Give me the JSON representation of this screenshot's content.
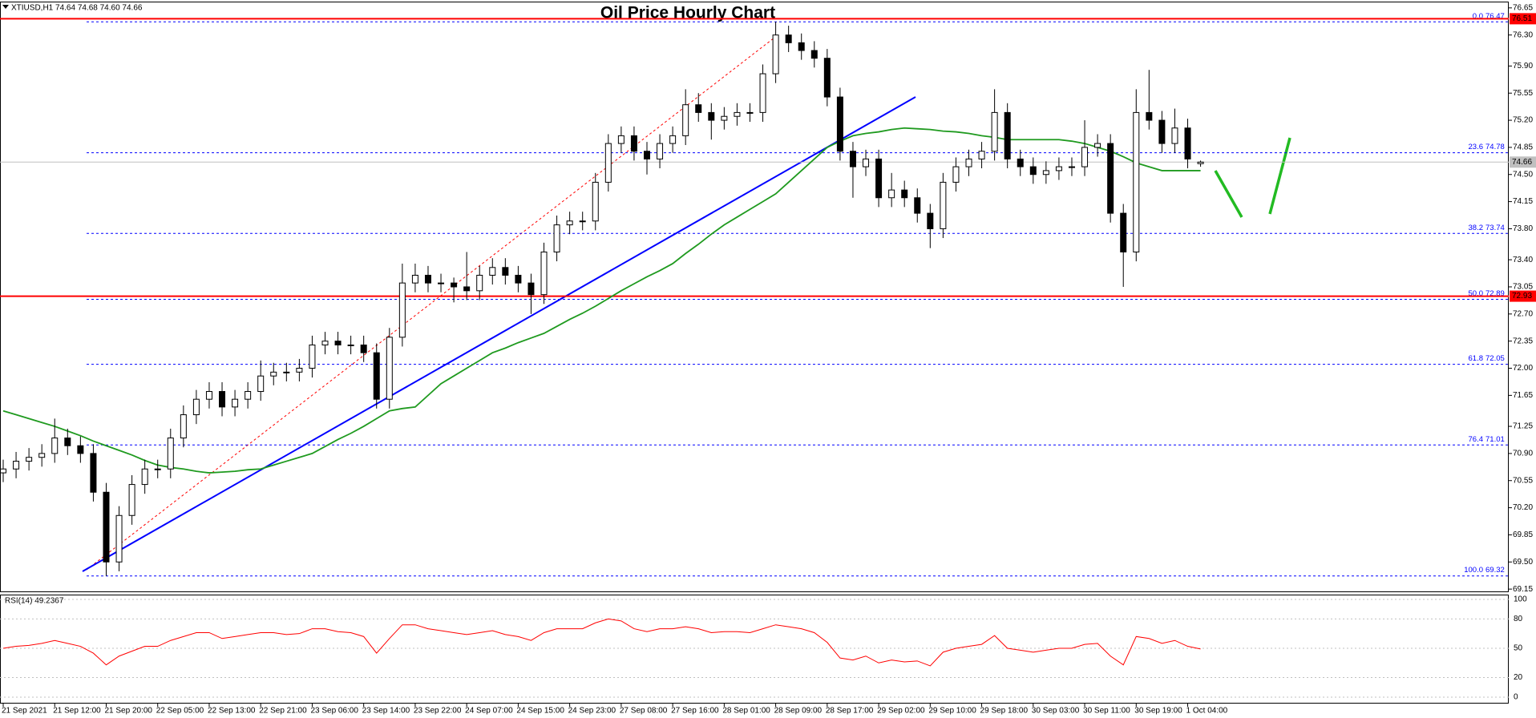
{
  "chart_data": [
    {
      "type": "candlestick",
      "title": "Oil Price Hourly Chart",
      "info": "XTIUSD,H1 74.64 74.68 74.60 74.66",
      "categories": [
        "21 Sep 2021",
        null,
        null,
        null,
        "21 Sep 12:00",
        null,
        null,
        null,
        "21 Sep 20:00",
        null,
        null,
        null,
        "22 Sep 05:00",
        null,
        null,
        null,
        "22 Sep 13:00",
        null,
        null,
        null,
        "22 Sep 21:00",
        null,
        null,
        null,
        "23 Sep 06:00",
        null,
        null,
        null,
        "23 Sep 14:00",
        null,
        null,
        null,
        "23 Sep 22:00",
        null,
        null,
        null,
        "24 Sep 07:00",
        null,
        null,
        null,
        "24 Sep 15:00",
        null,
        null,
        null,
        "24 Sep 23:00",
        null,
        null,
        null,
        "27 Sep 08:00",
        null,
        null,
        null,
        "27 Sep 16:00",
        null,
        null,
        null,
        "28 Sep 01:00",
        null,
        null,
        null,
        "28 Sep 09:00",
        null,
        null,
        null,
        "28 Sep 17:00",
        null,
        null,
        null,
        "29 Sep 02:00",
        null,
        null,
        null,
        "29 Sep 10:00",
        null,
        null,
        null,
        "29 Sep 18:00",
        null,
        null,
        null,
        "30 Sep 03:00",
        null,
        null,
        null,
        "30 Sep 11:00",
        null,
        null,
        null,
        "30 Sep 19:00",
        null,
        null,
        null,
        "1 Oct 04:00",
        null
      ],
      "open": [
        70.65,
        70.7,
        70.8,
        70.85,
        70.9,
        71.1,
        71.0,
        70.9,
        70.4,
        69.5,
        70.1,
        70.5,
        70.7,
        70.7,
        71.1,
        71.4,
        71.6,
        71.7,
        71.5,
        71.6,
        71.7,
        71.9,
        71.95,
        71.95,
        72.0,
        72.3,
        72.35,
        72.3,
        72.3,
        72.2,
        71.6,
        72.4,
        73.1,
        73.2,
        73.1,
        73.1,
        73.05,
        73.0,
        73.2,
        73.3,
        73.2,
        73.1,
        72.95,
        73.5,
        73.85,
        73.9,
        73.9,
        74.4,
        74.9,
        75.0,
        74.8,
        74.7,
        74.9,
        75.0,
        75.4,
        75.3,
        75.2,
        75.25,
        75.3,
        75.3,
        75.8,
        76.3,
        76.2,
        76.1,
        76.0,
        75.5,
        74.8,
        74.6,
        74.7,
        74.2,
        74.3,
        74.2,
        74.0,
        73.8,
        74.4,
        74.6,
        74.7,
        74.8,
        75.3,
        74.7,
        74.6,
        74.5,
        74.55,
        74.6,
        74.6,
        74.85,
        74.9,
        74.0,
        73.5,
        75.3,
        75.2,
        74.9,
        75.1,
        74.64
      ],
      "high": [
        70.82,
        70.92,
        70.97,
        71.02,
        71.35,
        71.22,
        71.12,
        71.02,
        70.52,
        70.22,
        70.62,
        70.82,
        70.82,
        71.22,
        71.52,
        71.72,
        71.82,
        71.82,
        71.72,
        71.82,
        72.1,
        72.07,
        72.07,
        72.12,
        72.42,
        72.47,
        72.47,
        72.42,
        72.42,
        72.32,
        72.52,
        73.35,
        73.35,
        73.32,
        73.22,
        73.17,
        73.5,
        73.32,
        73.42,
        73.42,
        73.32,
        73.22,
        73.62,
        73.97,
        74.02,
        74.02,
        74.52,
        75.02,
        75.12,
        75.12,
        74.92,
        75.02,
        75.12,
        75.6,
        75.55,
        75.42,
        75.37,
        75.42,
        75.42,
        75.92,
        76.47,
        76.42,
        76.32,
        76.22,
        76.12,
        75.62,
        74.92,
        74.82,
        74.82,
        74.52,
        74.42,
        74.32,
        74.12,
        74.52,
        74.72,
        74.82,
        74.92,
        75.6,
        75.42,
        74.82,
        74.72,
        74.67,
        74.72,
        74.72,
        75.2,
        75.02,
        75.02,
        74.12,
        75.6,
        75.85,
        75.32,
        75.35,
        75.22,
        74.68
      ],
      "low": [
        70.53,
        70.58,
        70.68,
        70.73,
        70.78,
        70.88,
        70.78,
        70.28,
        69.32,
        69.38,
        69.98,
        70.38,
        70.58,
        70.58,
        70.98,
        71.28,
        71.48,
        71.38,
        71.38,
        71.48,
        71.58,
        71.78,
        71.83,
        71.83,
        71.88,
        72.18,
        72.18,
        72.18,
        72.08,
        71.48,
        71.48,
        72.28,
        72.98,
        72.98,
        72.98,
        72.85,
        72.88,
        72.88,
        73.08,
        73.08,
        72.98,
        72.7,
        72.83,
        73.38,
        73.73,
        73.78,
        73.78,
        74.28,
        74.78,
        74.68,
        74.5,
        74.58,
        74.78,
        74.88,
        75.18,
        74.95,
        75.08,
        75.13,
        75.18,
        75.18,
        75.68,
        76.08,
        75.98,
        75.88,
        75.38,
        74.68,
        74.2,
        74.48,
        74.08,
        74.08,
        74.08,
        73.88,
        73.55,
        73.68,
        74.28,
        74.48,
        74.58,
        74.68,
        74.58,
        74.48,
        74.38,
        74.38,
        74.43,
        74.48,
        74.48,
        74.73,
        73.88,
        73.05,
        73.38,
        75.08,
        74.78,
        74.78,
        74.58,
        74.6
      ],
      "close": [
        70.7,
        70.8,
        70.85,
        70.9,
        71.1,
        71.0,
        70.9,
        70.4,
        69.5,
        70.1,
        70.5,
        70.7,
        70.7,
        71.1,
        71.4,
        71.6,
        71.7,
        71.5,
        71.6,
        71.7,
        71.9,
        71.95,
        71.95,
        72.0,
        72.3,
        72.35,
        72.3,
        72.3,
        72.2,
        71.6,
        72.4,
        73.1,
        73.2,
        73.1,
        73.1,
        73.05,
        73.0,
        73.2,
        73.3,
        73.2,
        73.1,
        72.95,
        73.5,
        73.85,
        73.9,
        73.9,
        74.4,
        74.9,
        75.0,
        74.8,
        74.7,
        74.9,
        75.0,
        75.4,
        75.3,
        75.2,
        75.25,
        75.3,
        75.3,
        75.8,
        76.3,
        76.2,
        76.1,
        76.0,
        75.5,
        74.8,
        74.6,
        74.7,
        74.2,
        74.3,
        74.2,
        74.0,
        73.8,
        74.4,
        74.6,
        74.7,
        74.8,
        75.3,
        74.7,
        74.6,
        74.5,
        74.55,
        74.6,
        74.6,
        74.85,
        74.9,
        74.0,
        73.5,
        75.3,
        75.2,
        74.9,
        75.1,
        74.7,
        74.66
      ],
      "up_color": "#ffffff",
      "down_color": "#000000",
      "ma": {
        "color": "#1f9a1f",
        "values": [
          71.45,
          71.4,
          71.35,
          71.3,
          71.25,
          71.19,
          71.13,
          71.06,
          71.0,
          70.94,
          70.88,
          70.81,
          70.75,
          70.72,
          70.7,
          70.67,
          70.65,
          70.66,
          70.67,
          70.69,
          70.7,
          70.75,
          70.8,
          70.85,
          70.9,
          70.99,
          71.08,
          71.16,
          71.25,
          71.35,
          71.45,
          71.48,
          71.5,
          71.65,
          71.8,
          71.9,
          72.0,
          72.1,
          72.2,
          72.26,
          72.33,
          72.39,
          72.45,
          72.54,
          72.63,
          72.71,
          72.8,
          72.9,
          73.0,
          73.09,
          73.18,
          73.26,
          73.35,
          73.48,
          73.6,
          73.73,
          73.85,
          73.95,
          74.05,
          74.15,
          74.25,
          74.4,
          74.55,
          74.7,
          74.85,
          74.93,
          75.0,
          75.03,
          75.05,
          75.08,
          75.1,
          75.09,
          75.08,
          75.06,
          75.05,
          75.03,
          75.0,
          74.98,
          74.95,
          74.95,
          74.95,
          74.95,
          74.95,
          74.93,
          74.9,
          74.85,
          74.8,
          74.73,
          74.65,
          74.6,
          74.55,
          74.55,
          74.55,
          74.55
        ]
      },
      "ylim": [
        69.11,
        76.7
      ],
      "yticks": [
        76.65,
        {
          "value": 76.3,
          "label": "76.30"
        },
        {
          "value": 75.9,
          "label": "75.90"
        },
        75.55,
        {
          "value": 75.2,
          "label": "75.20"
        },
        74.85,
        {
          "value": 74.5,
          "label": "74.50"
        },
        74.15,
        {
          "value": 73.8,
          "label": "73.80"
        },
        {
          "value": 73.4,
          "label": "73.40"
        },
        73.05,
        {
          "value": 72.7,
          "label": "72.70"
        },
        72.35,
        {
          "value": 72,
          "label": "72.00"
        },
        71.65,
        71.25,
        {
          "value": 70.9,
          "label": "70.90"
        },
        70.55,
        {
          "value": 70.2,
          "label": "70.20"
        },
        69.85,
        {
          "value": 69.5,
          "label": "69.50"
        },
        69.15
      ],
      "levels": [
        {
          "ratio": "0.0",
          "price": 76.47
        },
        {
          "ratio": "23.6",
          "price": 74.78
        },
        {
          "ratio": "38.2",
          "price": 73.74
        },
        {
          "ratio": "50.0",
          "price": 72.89
        },
        {
          "ratio": "61.8",
          "price": 72.05
        },
        {
          "ratio": "76.4",
          "price": 71.01
        },
        {
          "ratio": "100.0",
          "price": 69.32
        }
      ],
      "level_color": "#0000ff",
      "lines": [
        {
          "value": 76.51,
          "color": "#ff0000"
        },
        {
          "value": 74.66,
          "color": "#c0c0c0"
        },
        {
          "value": 72.93,
          "color": "#ff0000"
        }
      ]
    },
    {
      "type": "line",
      "title": "RSI(14) 49.2367",
      "values": [
        50,
        52,
        53,
        55,
        58,
        55,
        52,
        45,
        33,
        42,
        47,
        52,
        52,
        58,
        62,
        66,
        66,
        60,
        62,
        64,
        66,
        66,
        64,
        65,
        70,
        70,
        67,
        66,
        62,
        45,
        60,
        74,
        74,
        70,
        68,
        66,
        64,
        66,
        68,
        64,
        62,
        58,
        66,
        70,
        70,
        70,
        76,
        80,
        78,
        70,
        67,
        70,
        70,
        72,
        70,
        66,
        67,
        67,
        66,
        70,
        74,
        72,
        70,
        66,
        56,
        40,
        38,
        42,
        35,
        38,
        36,
        37,
        32,
        46,
        50,
        52,
        54,
        63,
        50,
        48,
        46,
        48,
        50,
        50,
        54,
        55,
        42,
        33,
        62,
        60,
        55,
        58,
        52,
        49.24
      ],
      "color": "#ff0000",
      "ylim": [
        -6.6,
        104.1
      ],
      "yticks": [
        100,
        80,
        50,
        20,
        0
      ],
      "grid": true
    }
  ]
}
